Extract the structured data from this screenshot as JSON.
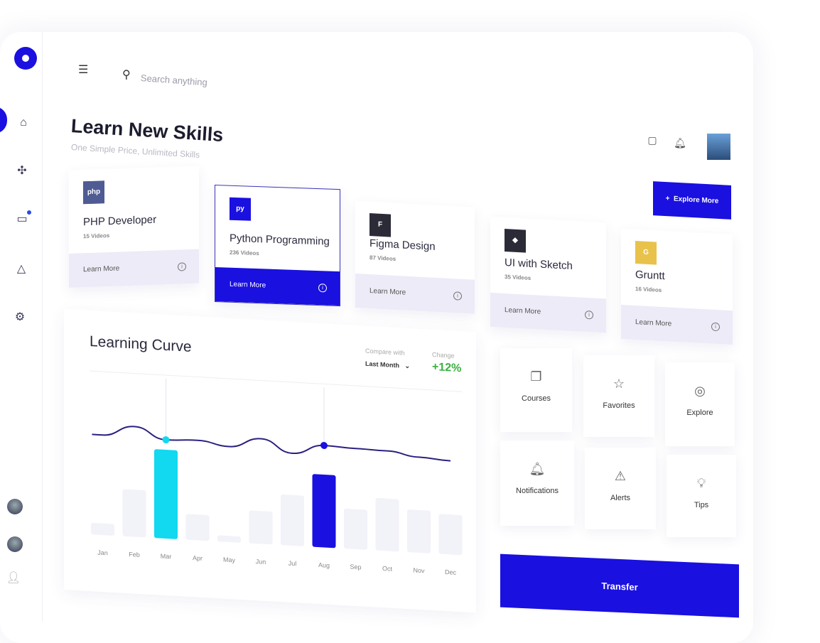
{
  "search": {
    "placeholder": "Search anything"
  },
  "header": {
    "title": "Learn New Skills",
    "subtitle": "One Simple Price, Unlimited Skills",
    "explore_label": "Explore More",
    "explore_icon": "+"
  },
  "courses": [
    {
      "name": "PHP Developer",
      "count": "15 Videos",
      "logo": "php",
      "logo_color": "#4f5b93",
      "cta": "Learn More",
      "selected": false
    },
    {
      "name": "Python Programming",
      "count": "236 Videos",
      "logo": "py",
      "logo_color": "#1a10e0",
      "cta": "Learn More",
      "selected": true
    },
    {
      "name": "Figma Design",
      "count": "87 Videos",
      "logo": "F",
      "logo_color": "#2b2b38",
      "cta": "Learn More",
      "selected": false
    },
    {
      "name": "UI with Sketch",
      "count": "35 Videos",
      "logo": "◆",
      "logo_color": "#2b2b38",
      "cta": "Learn More",
      "selected": false
    },
    {
      "name": "Gruntt",
      "count": "16 Videos",
      "logo": "G",
      "logo_color": "#e8c24a",
      "cta": "Learn More",
      "selected": false
    }
  ],
  "chart": {
    "title": "Learning Curve",
    "compare_label": "Compare with",
    "compare_value": "Last Month",
    "change_label": "Change",
    "change_value": "+12%",
    "change_color": "#3cb043"
  },
  "chart_data": {
    "type": "bar",
    "categories": [
      "Jan",
      "Feb",
      "Mar",
      "Apr",
      "May",
      "Jun",
      "Jul",
      "Aug",
      "Sep",
      "Oct",
      "Nov",
      "Dec"
    ],
    "values": [
      13,
      53,
      100,
      29,
      7,
      37,
      57,
      82,
      45,
      59,
      48,
      45
    ],
    "highlight": {
      "Mar": "#12d8f0",
      "Aug": "#1a10e0"
    },
    "line_values": [
      62,
      78,
      60,
      62,
      55,
      70,
      50,
      65,
      63,
      62,
      55,
      52
    ],
    "line_markers": [
      "Mar",
      "Aug"
    ],
    "bar_color": "#f2f2f9",
    "grid": false
  },
  "tiles": [
    {
      "label": "Courses",
      "icon": "❐"
    },
    {
      "label": "Favorites",
      "icon": "☆"
    },
    {
      "label": "Explore",
      "icon": "◎"
    },
    {
      "label": "Notifications",
      "icon": "🔔︎"
    },
    {
      "label": "Alerts",
      "icon": "⚠︎"
    },
    {
      "label": "Tips",
      "icon": "💡︎"
    }
  ],
  "transfer_label": "Transfer",
  "accent": "#1a10e0"
}
